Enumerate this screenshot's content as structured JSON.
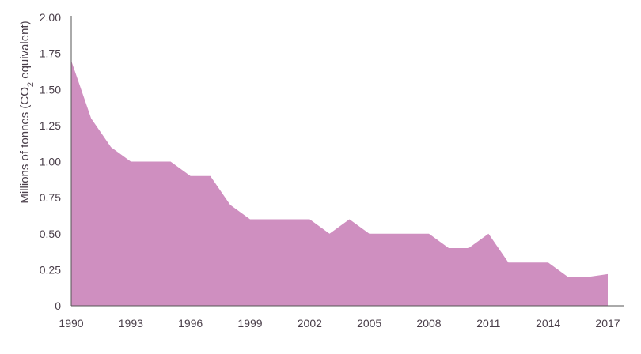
{
  "chart_data": {
    "type": "area",
    "title": "",
    "xlabel": "",
    "ylabel": {
      "prefix": "Millions of tonnes (CO",
      "subscript": "2",
      "suffix": " equivalent)"
    },
    "x": [
      1990,
      1991,
      1992,
      1993,
      1994,
      1995,
      1996,
      1997,
      1998,
      1999,
      2000,
      2001,
      2002,
      2003,
      2004,
      2005,
      2006,
      2007,
      2008,
      2009,
      2010,
      2011,
      2012,
      2013,
      2014,
      2015,
      2016,
      2017
    ],
    "values": [
      1.7,
      1.3,
      1.1,
      1.0,
      1.0,
      1.0,
      0.9,
      0.9,
      0.7,
      0.6,
      0.6,
      0.6,
      0.6,
      0.5,
      0.6,
      0.5,
      0.5,
      0.5,
      0.5,
      0.4,
      0.4,
      0.5,
      0.3,
      0.3,
      0.3,
      0.2,
      0.2,
      0.22
    ],
    "x_ticks": [
      "1990",
      "1993",
      "1996",
      "1999",
      "2002",
      "2005",
      "2008",
      "2011",
      "2014",
      "2017"
    ],
    "y_ticks": [
      "0",
      "0.25",
      "0.50",
      "0.75",
      "1.00",
      "1.25",
      "1.50",
      "1.75",
      "2.00"
    ],
    "xlim": [
      1990,
      2017
    ],
    "ylim": [
      0,
      2.0
    ],
    "grid": false,
    "legend": "none",
    "colors": {
      "area": "#cf8fc0",
      "axis": "#555555",
      "text": "#4a3f4a"
    }
  }
}
